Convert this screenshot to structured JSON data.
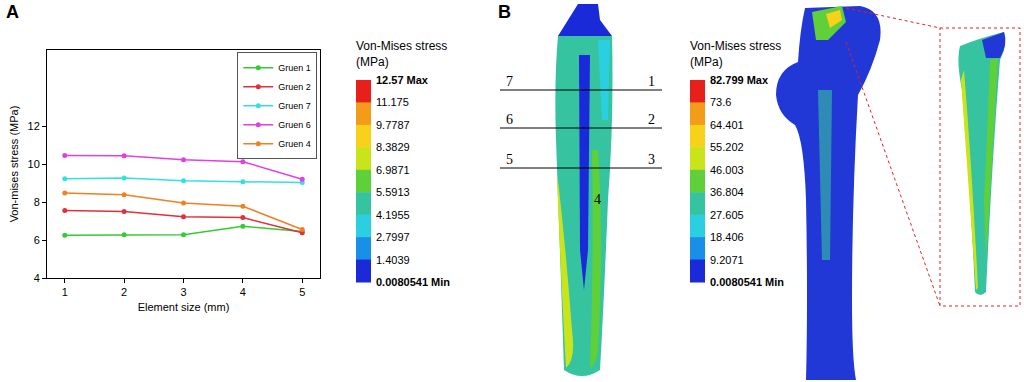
{
  "chart_data": {
    "type": "line",
    "x_label": "Element size (mm)",
    "y_label": "Von-mises stress (MPa)",
    "x": [
      1,
      2,
      3,
      4,
      5
    ],
    "xlim": [
      0.7,
      5.3
    ],
    "xticks": [
      1,
      2,
      3,
      4,
      5
    ],
    "ylim": [
      4,
      16
    ],
    "yticks": [
      4,
      6,
      8,
      10,
      12
    ],
    "grid": false,
    "legend": "upper right",
    "marker": "circle",
    "line_style": "solid",
    "series": [
      {
        "name": "Gruen 1",
        "color": "#33cc33",
        "values": [
          6.25,
          6.27,
          6.28,
          6.72,
          6.45
        ]
      },
      {
        "name": "Gruen 2",
        "color": "#e0303a",
        "values": [
          7.55,
          7.5,
          7.23,
          7.18,
          6.38
        ]
      },
      {
        "name": "Gruen 7",
        "color": "#33e0e0",
        "values": [
          9.22,
          9.26,
          9.12,
          9.07,
          9.02
        ]
      },
      {
        "name": "Gruen 6",
        "color": "#e040e0",
        "values": [
          10.45,
          10.43,
          10.23,
          10.12,
          9.2
        ]
      },
      {
        "name": "Gruen 4",
        "color": "#f08020",
        "values": [
          8.48,
          8.38,
          7.95,
          7.78,
          6.55
        ]
      }
    ]
  },
  "panel_labels": [
    "A",
    "B"
  ],
  "panel_b": {
    "legends": [
      {
        "title_lines": [
          "Von-Mises stress",
          "(MPa)"
        ],
        "ticks": [
          {
            "value": 12.57,
            "label": "12.57 Max"
          },
          {
            "value": 11.175,
            "label": "11.175"
          },
          {
            "value": 9.7787,
            "label": "9.7787"
          },
          {
            "value": 8.3829,
            "label": "8.3829"
          },
          {
            "value": 6.9871,
            "label": "6.9871"
          },
          {
            "value": 5.5913,
            "label": "5.5913"
          },
          {
            "value": 4.1955,
            "label": "4.1955"
          },
          {
            "value": 2.7997,
            "label": "2.7997"
          },
          {
            "value": 1.4039,
            "label": "1.4039"
          },
          {
            "value": 0.0080541,
            "label": "0.0080541 Min"
          }
        ],
        "colors": [
          "#e8201c",
          "#f39c1a",
          "#f8d21a",
          "#c9e41a",
          "#5fd03a",
          "#36c3a0",
          "#2ad0e0",
          "#1a8fe8",
          "#1a2ad8"
        ]
      },
      {
        "title_lines": [
          "Von-Mises stress",
          "(MPa)"
        ],
        "ticks": [
          {
            "value": 82.799,
            "label": "82.799 Max"
          },
          {
            "value": 73.6,
            "label": "73.6"
          },
          {
            "value": 64.401,
            "label": "64.401"
          },
          {
            "value": 55.202,
            "label": "55.202"
          },
          {
            "value": 46.003,
            "label": "46.003"
          },
          {
            "value": 36.804,
            "label": "36.804"
          },
          {
            "value": 27.605,
            "label": "27.605"
          },
          {
            "value": 18.406,
            "label": "18.406"
          },
          {
            "value": 9.2071,
            "label": "9.2071"
          },
          {
            "value": 0.0080541,
            "label": "0.0080541 Min"
          }
        ],
        "colors": [
          "#e8201c",
          "#f39c1a",
          "#f8d21a",
          "#c9e41a",
          "#5fd03a",
          "#36c3a0",
          "#2ad0e0",
          "#1a8fe8",
          "#1a2ad8"
        ]
      }
    ],
    "zone_labels": {
      "left": [
        "7",
        "6",
        "5"
      ],
      "right": [
        "1",
        "2",
        "3"
      ],
      "tip": "4"
    }
  }
}
